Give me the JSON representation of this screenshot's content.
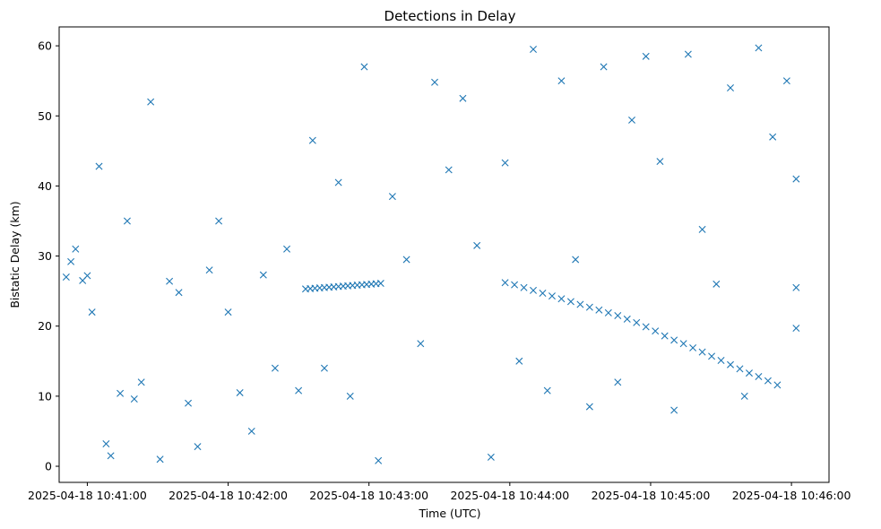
{
  "chart_data": {
    "type": "scatter",
    "title": "Detections in Delay",
    "xlabel": "Time (UTC)",
    "ylabel": "Bistatic Delay (km)",
    "marker": "x",
    "marker_color": "#1f77b4",
    "grid": false,
    "legend": "none",
    "xlim": [
      "2025-04-18 10:40:48",
      "2025-04-18 10:46:16"
    ],
    "ylim": [
      -2.3,
      62.7
    ],
    "x_ticks": [
      "2025-04-18 10:41:00",
      "2025-04-18 10:42:00",
      "2025-04-18 10:43:00",
      "2025-04-18 10:44:00",
      "2025-04-18 10:45:00",
      "2025-04-18 10:46:00"
    ],
    "y_ticks": [
      0,
      10,
      20,
      30,
      40,
      50,
      60
    ],
    "series": [
      {
        "values_note": "Approximate detections: track and clutter",
        "points": [
          [
            "2025-04-18 10:42:33",
            25.3
          ],
          [
            "2025-04-18 10:42:35",
            25.35
          ],
          [
            "2025-04-18 10:42:37",
            25.4
          ],
          [
            "2025-04-18 10:42:39",
            25.45
          ],
          [
            "2025-04-18 10:42:41",
            25.5
          ],
          [
            "2025-04-18 10:42:43",
            25.55
          ],
          [
            "2025-04-18 10:42:45",
            25.6
          ],
          [
            "2025-04-18 10:42:47",
            25.65
          ],
          [
            "2025-04-18 10:42:49",
            25.7
          ],
          [
            "2025-04-18 10:42:51",
            25.75
          ],
          [
            "2025-04-18 10:42:53",
            25.8
          ],
          [
            "2025-04-18 10:42:55",
            25.85
          ],
          [
            "2025-04-18 10:42:57",
            25.9
          ],
          [
            "2025-04-18 10:42:59",
            25.95
          ],
          [
            "2025-04-18 10:43:01",
            26.0
          ],
          [
            "2025-04-18 10:43:03",
            26.05
          ],
          [
            "2025-04-18 10:43:05",
            26.1
          ],
          [
            "2025-04-18 10:43:58",
            26.2
          ],
          [
            "2025-04-18 10:44:02",
            25.9
          ],
          [
            "2025-04-18 10:44:06",
            25.5
          ],
          [
            "2025-04-18 10:44:10",
            25.1
          ],
          [
            "2025-04-18 10:44:14",
            24.7
          ],
          [
            "2025-04-18 10:44:18",
            24.3
          ],
          [
            "2025-04-18 10:44:22",
            23.9
          ],
          [
            "2025-04-18 10:44:26",
            23.5
          ],
          [
            "2025-04-18 10:44:30",
            23.1
          ],
          [
            "2025-04-18 10:44:34",
            22.7
          ],
          [
            "2025-04-18 10:44:38",
            22.3
          ],
          [
            "2025-04-18 10:44:42",
            21.9
          ],
          [
            "2025-04-18 10:44:46",
            21.5
          ],
          [
            "2025-04-18 10:44:50",
            21.0
          ],
          [
            "2025-04-18 10:44:54",
            20.5
          ],
          [
            "2025-04-18 10:44:58",
            19.9
          ],
          [
            "2025-04-18 10:45:02",
            19.3
          ],
          [
            "2025-04-18 10:45:06",
            18.6
          ],
          [
            "2025-04-18 10:45:10",
            18.0
          ],
          [
            "2025-04-18 10:45:14",
            17.5
          ],
          [
            "2025-04-18 10:45:18",
            16.9
          ],
          [
            "2025-04-18 10:45:22",
            16.3
          ],
          [
            "2025-04-18 10:45:26",
            15.7
          ],
          [
            "2025-04-18 10:45:30",
            15.1
          ],
          [
            "2025-04-18 10:45:34",
            14.5
          ],
          [
            "2025-04-18 10:45:38",
            13.9
          ],
          [
            "2025-04-18 10:45:42",
            13.3
          ],
          [
            "2025-04-18 10:45:46",
            12.8
          ],
          [
            "2025-04-18 10:45:50",
            12.2
          ],
          [
            "2025-04-18 10:45:54",
            11.6
          ],
          [
            "2025-04-18 10:40:51",
            27.0
          ],
          [
            "2025-04-18 10:40:53",
            29.2
          ],
          [
            "2025-04-18 10:40:55",
            31.0
          ],
          [
            "2025-04-18 10:40:58",
            26.5
          ],
          [
            "2025-04-18 10:41:00",
            27.2
          ],
          [
            "2025-04-18 10:41:02",
            22.0
          ],
          [
            "2025-04-18 10:41:05",
            42.8
          ],
          [
            "2025-04-18 10:41:08",
            3.2
          ],
          [
            "2025-04-18 10:41:10",
            1.5
          ],
          [
            "2025-04-18 10:41:14",
            10.4
          ],
          [
            "2025-04-18 10:41:17",
            35.0
          ],
          [
            "2025-04-18 10:41:20",
            9.6
          ],
          [
            "2025-04-18 10:41:23",
            12.0
          ],
          [
            "2025-04-18 10:41:27",
            52.0
          ],
          [
            "2025-04-18 10:41:31",
            1.0
          ],
          [
            "2025-04-18 10:41:35",
            26.4
          ],
          [
            "2025-04-18 10:41:39",
            24.8
          ],
          [
            "2025-04-18 10:41:43",
            9.0
          ],
          [
            "2025-04-18 10:41:47",
            2.8
          ],
          [
            "2025-04-18 10:41:52",
            28.0
          ],
          [
            "2025-04-18 10:41:56",
            35.0
          ],
          [
            "2025-04-18 10:42:00",
            22.0
          ],
          [
            "2025-04-18 10:42:05",
            10.5
          ],
          [
            "2025-04-18 10:42:10",
            5.0
          ],
          [
            "2025-04-18 10:42:15",
            27.3
          ],
          [
            "2025-04-18 10:42:20",
            14.0
          ],
          [
            "2025-04-18 10:42:25",
            31.0
          ],
          [
            "2025-04-18 10:42:30",
            10.8
          ],
          [
            "2025-04-18 10:42:36",
            46.5
          ],
          [
            "2025-04-18 10:42:41",
            14.0
          ],
          [
            "2025-04-18 10:42:47",
            40.5
          ],
          [
            "2025-04-18 10:42:52",
            10.0
          ],
          [
            "2025-04-18 10:42:58",
            57.0
          ],
          [
            "2025-04-18 10:43:04",
            0.8
          ],
          [
            "2025-04-18 10:43:10",
            38.5
          ],
          [
            "2025-04-18 10:43:16",
            29.5
          ],
          [
            "2025-04-18 10:43:22",
            17.5
          ],
          [
            "2025-04-18 10:43:28",
            54.8
          ],
          [
            "2025-04-18 10:43:34",
            42.3
          ],
          [
            "2025-04-18 10:43:40",
            52.5
          ],
          [
            "2025-04-18 10:43:46",
            31.5
          ],
          [
            "2025-04-18 10:43:52",
            1.3
          ],
          [
            "2025-04-18 10:43:58",
            43.3
          ],
          [
            "2025-04-18 10:44:04",
            15.0
          ],
          [
            "2025-04-18 10:44:10",
            59.5
          ],
          [
            "2025-04-18 10:44:16",
            10.8
          ],
          [
            "2025-04-18 10:44:22",
            55.0
          ],
          [
            "2025-04-18 10:44:28",
            29.5
          ],
          [
            "2025-04-18 10:44:34",
            8.5
          ],
          [
            "2025-04-18 10:44:40",
            57.0
          ],
          [
            "2025-04-18 10:44:46",
            12.0
          ],
          [
            "2025-04-18 10:44:52",
            49.4
          ],
          [
            "2025-04-18 10:44:58",
            58.5
          ],
          [
            "2025-04-18 10:45:04",
            43.5
          ],
          [
            "2025-04-18 10:45:10",
            8.0
          ],
          [
            "2025-04-18 10:45:16",
            58.8
          ],
          [
            "2025-04-18 10:45:22",
            33.8
          ],
          [
            "2025-04-18 10:45:28",
            26.0
          ],
          [
            "2025-04-18 10:45:34",
            54.0
          ],
          [
            "2025-04-18 10:45:40",
            10.0
          ],
          [
            "2025-04-18 10:45:46",
            59.7
          ],
          [
            "2025-04-18 10:45:52",
            47.0
          ],
          [
            "2025-04-18 10:45:58",
            55.0
          ],
          [
            "2025-04-18 10:46:02",
            41.0
          ],
          [
            "2025-04-18 10:46:02",
            25.5
          ],
          [
            "2025-04-18 10:46:02",
            19.7
          ]
        ]
      }
    ]
  }
}
